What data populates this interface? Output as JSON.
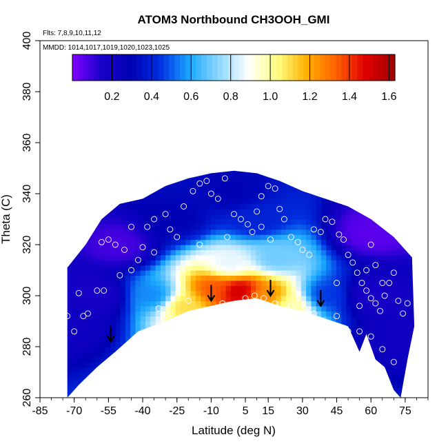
{
  "chart_data": {
    "type": "heatmap",
    "title": "ATOM3 Northbound CH3OOH_GMI",
    "flights_label": "Flts: 7,8,9,10,11,12",
    "dates_label": "MMDD: 1014,1017,1019,1020,1023,1025",
    "xlabel": "Latitude (deg N)",
    "ylabel": "Theta (C)",
    "xlim": [
      -85,
      85
    ],
    "ylim": [
      260,
      400
    ],
    "x_ticks": [
      -85,
      -70,
      -55,
      -40,
      -25,
      -10,
      5,
      15,
      30,
      45,
      60,
      75
    ],
    "y_ticks": [
      260,
      280,
      300,
      320,
      340,
      360,
      380,
      400
    ],
    "colorbar": {
      "range": [
        0,
        1.63
      ],
      "ticks": [
        0.2,
        0.4,
        0.6,
        0.8,
        1.0,
        1.2,
        1.4,
        1.6
      ],
      "tick_labels": [
        "0.2",
        "0.4",
        "0.6",
        "0.8",
        "1.0",
        "1.2",
        "1.4",
        "1.6"
      ],
      "colors": [
        "#7f00ff",
        "#1800c8",
        "#0000b4",
        "#0030e0",
        "#1aa8ff",
        "#8fd8ff",
        "#ffffff",
        "#ffff80",
        "#ffb000",
        "#ff6000",
        "#e00000",
        "#a00000"
      ]
    },
    "data_extent": {
      "upper_boundary": [
        [
          -73,
          311
        ],
        [
          -65,
          320
        ],
        [
          -58,
          330
        ],
        [
          -50,
          336
        ],
        [
          -40,
          338
        ],
        [
          -30,
          343
        ],
        [
          -20,
          346
        ],
        [
          -10,
          348
        ],
        [
          0,
          349
        ],
        [
          10,
          348
        ],
        [
          20,
          345
        ],
        [
          30,
          341
        ],
        [
          40,
          338
        ],
        [
          50,
          335
        ],
        [
          60,
          330
        ],
        [
          70,
          323
        ],
        [
          75,
          318
        ],
        [
          78,
          315
        ]
      ],
      "lower_boundary": [
        [
          -73,
          260
        ],
        [
          -68,
          265
        ],
        [
          -60,
          272
        ],
        [
          -52,
          278
        ],
        [
          -42,
          286
        ],
        [
          -30,
          290
        ],
        [
          -20,
          294
        ],
        [
          -10,
          296
        ],
        [
          0,
          298
        ],
        [
          10,
          299
        ],
        [
          20,
          296
        ],
        [
          30,
          294
        ],
        [
          40,
          291
        ],
        [
          50,
          288
        ],
        [
          55,
          278
        ],
        [
          58,
          285
        ],
        [
          62,
          275
        ],
        [
          66,
          272
        ],
        [
          70,
          263
        ],
        [
          73,
          260
        ],
        [
          76,
          275
        ],
        [
          79,
          288
        ]
      ]
    },
    "field_features": [
      {
        "lat": 2,
        "theta": 302,
        "value": 1.55
      },
      {
        "lat": -8,
        "theta": 303,
        "value": 1.35
      },
      {
        "lat": 14,
        "theta": 300,
        "value": 1.25
      },
      {
        "lat": -22,
        "theta": 296,
        "value": 1.1
      },
      {
        "lat": 25,
        "theta": 296,
        "value": 1.0
      },
      {
        "lat": -2,
        "theta": 312,
        "value": 0.85
      },
      {
        "lat": 18,
        "theta": 315,
        "value": 0.7
      },
      {
        "lat": -35,
        "theta": 300,
        "value": 0.55
      },
      {
        "lat": 40,
        "theta": 300,
        "value": 0.45
      },
      {
        "lat": 10,
        "theta": 330,
        "value": 0.4
      },
      {
        "lat": -60,
        "theta": 300,
        "value": 0.15
      },
      {
        "lat": 60,
        "theta": 300,
        "value": 0.15
      },
      {
        "lat": -70,
        "theta": 290,
        "value": 0.2
      },
      {
        "lat": 70,
        "theta": 285,
        "value": 0.2
      },
      {
        "lat": -50,
        "theta": 320,
        "value": 0.08
      },
      {
        "lat": 60,
        "theta": 325,
        "value": 0.05
      },
      {
        "lat": 0,
        "theta": 340,
        "value": 0.3
      },
      {
        "lat": -25,
        "theta": 330,
        "value": 0.3
      }
    ],
    "observations": [
      [
        -73,
        292
      ],
      [
        -70,
        286
      ],
      [
        -68,
        301
      ],
      [
        -66,
        292
      ],
      [
        -64,
        293
      ],
      [
        -60,
        302
      ],
      [
        -57,
        302
      ],
      [
        -50,
        308
      ],
      [
        -45,
        310
      ],
      [
        -42,
        314
      ],
      [
        -40,
        319
      ],
      [
        -38,
        327
      ],
      [
        -35,
        330
      ],
      [
        -30,
        332
      ],
      [
        -28,
        326
      ],
      [
        -25,
        323
      ],
      [
        -22,
        335
      ],
      [
        -18,
        341
      ],
      [
        -15,
        344
      ],
      [
        -12,
        345
      ],
      [
        -10,
        340
      ],
      [
        -7,
        338
      ],
      [
        -4,
        346
      ],
      [
        0,
        332
      ],
      [
        3,
        330
      ],
      [
        6,
        328
      ],
      [
        8,
        325
      ],
      [
        10,
        333
      ],
      [
        12,
        339
      ],
      [
        15,
        343
      ],
      [
        18,
        342
      ],
      [
        20,
        334
      ],
      [
        22,
        330
      ],
      [
        25,
        323
      ],
      [
        28,
        321
      ],
      [
        30,
        318
      ],
      [
        33,
        316
      ],
      [
        35,
        326
      ],
      [
        38,
        325
      ],
      [
        40,
        330
      ],
      [
        43,
        329
      ],
      [
        46,
        324
      ],
      [
        48,
        322
      ],
      [
        50,
        316
      ],
      [
        52,
        313
      ],
      [
        54,
        309
      ],
      [
        56,
        305
      ],
      [
        58,
        302
      ],
      [
        60,
        299
      ],
      [
        62,
        297
      ],
      [
        64,
        294
      ],
      [
        66,
        300
      ],
      [
        68,
        305
      ],
      [
        70,
        309
      ],
      [
        72,
        298
      ],
      [
        74,
        293
      ],
      [
        76,
        297
      ],
      [
        -55,
        322
      ],
      [
        -52,
        320
      ],
      [
        -48,
        318
      ],
      [
        -33,
        295
      ],
      [
        -28,
        293
      ],
      [
        -20,
        298
      ],
      [
        -5,
        297
      ],
      [
        5,
        299
      ],
      [
        9,
        300
      ],
      [
        13,
        299
      ],
      [
        18,
        297
      ],
      [
        25,
        296
      ],
      [
        35,
        293
      ],
      [
        45,
        292
      ],
      [
        50,
        286
      ],
      [
        55,
        286
      ],
      [
        60,
        284
      ],
      [
        65,
        279
      ],
      [
        70,
        274
      ],
      [
        -62,
        333
      ],
      [
        -45,
        327
      ],
      [
        -15,
        320
      ],
      [
        55,
        296
      ],
      [
        58,
        310
      ],
      [
        62,
        312
      ],
      [
        65,
        305
      ],
      [
        45,
        305
      ],
      [
        12,
        327
      ],
      [
        16,
        322
      ],
      [
        -3,
        323
      ],
      [
        -35,
        317
      ],
      [
        -58,
        321
      ],
      [
        60,
        320
      ]
    ],
    "arrows": [
      {
        "lat": -54,
        "theta": 282
      },
      {
        "lat": -10,
        "theta": 298
      },
      {
        "lat": 16,
        "theta": 300
      },
      {
        "lat": 38,
        "theta": 296
      }
    ],
    "grid": false,
    "legend": "colorbar top"
  }
}
